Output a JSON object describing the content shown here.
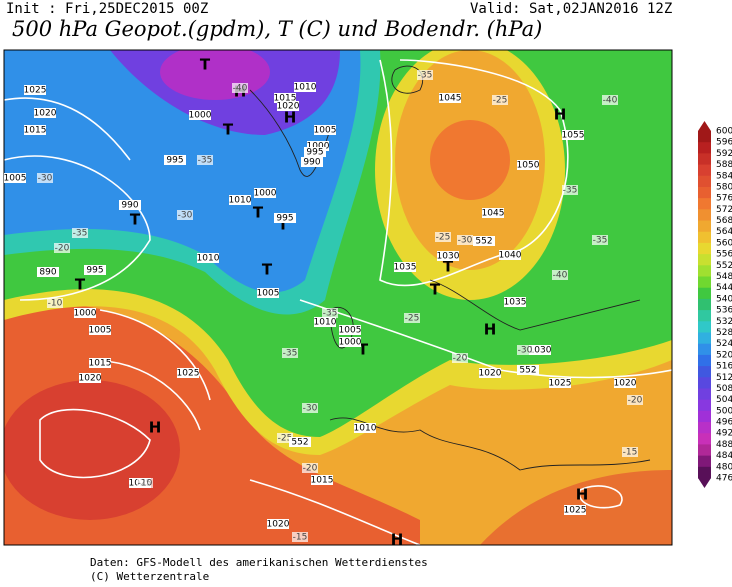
{
  "header": {
    "init": "Init : Fri,25DEC2015 00Z",
    "valid": "Valid: Sat,02JAN2016 12Z",
    "title": "500 hPa Geopot.(gpdm), T (C) und Bodendr. (hPa)"
  },
  "legend": {
    "levels": [
      "600",
      "596",
      "592",
      "588",
      "584",
      "580",
      "576",
      "572",
      "568",
      "564",
      "560",
      "556",
      "552",
      "548",
      "544",
      "540",
      "536",
      "532",
      "528",
      "524",
      "520",
      "516",
      "512",
      "508",
      "504",
      "500",
      "496",
      "492",
      "488",
      "484",
      "480",
      "476"
    ],
    "colors": [
      "#a01818",
      "#b82020",
      "#c83028",
      "#d84030",
      "#e05030",
      "#e86030",
      "#f07830",
      "#f09030",
      "#f0a830",
      "#f0c030",
      "#e8d830",
      "#c8e030",
      "#a0e030",
      "#70d830",
      "#40c840",
      "#30c070",
      "#30c8a0",
      "#30c8c8",
      "#30b0e0",
      "#3090e8",
      "#3070e8",
      "#4058e0",
      "#5848e0",
      "#7040e0",
      "#8838e0",
      "#a030d8",
      "#b830c8",
      "#c830b8",
      "#b02898",
      "#801878",
      "#581058"
    ]
  },
  "map": {
    "labels": [
      "H",
      "H",
      "H",
      "H",
      "H",
      "H",
      "H",
      "T",
      "T",
      "T",
      "T",
      "T",
      "T",
      "T",
      "T",
      "T",
      "T",
      "1025",
      "1020",
      "1015",
      "1005",
      "990",
      "890",
      "995",
      "1000",
      "1005",
      "1015",
      "1020",
      "1025",
      "1010",
      "1005",
      "1010",
      "995",
      "1000",
      "1010",
      "1015",
      "1020",
      "1000",
      "995",
      "1005",
      "1000",
      "995",
      "990",
      "1045",
      "1055",
      "1050",
      "1045",
      "1040",
      "1035",
      "1030",
      "1035",
      "1030",
      "1025",
      "1020",
      "1020",
      "1010",
      "1005",
      "1000",
      "1010",
      "1015",
      "1025",
      "1020",
      "1025",
      "-40",
      "-35",
      "-30",
      "-35",
      "-30",
      "-20",
      "-10",
      "-35",
      "-35",
      "-30",
      "-25",
      "-20",
      "-10",
      "-15",
      "-35",
      "-25",
      "-40",
      "-25",
      "-30",
      "-35",
      "-35",
      "-40",
      "-30",
      "-20",
      "-20",
      "-15",
      "-25",
      "552",
      "552",
      "552"
    ]
  },
  "footer": {
    "line1": "Daten: GFS-Modell des amerikanischen Wetterdienstes",
    "line2": "(C) Wetterzentrale"
  }
}
